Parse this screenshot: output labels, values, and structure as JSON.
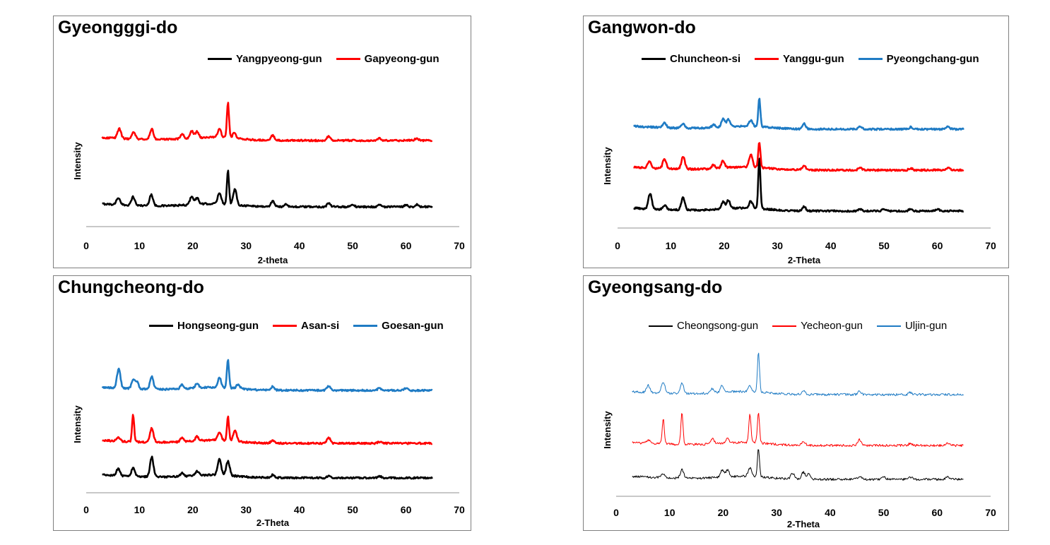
{
  "chart_data": [
    {
      "type": "line",
      "title": "Gyeongggi-do",
      "xlabel": "2-theta",
      "ylabel": "Intensity",
      "xlim": [
        0,
        70
      ],
      "xticks": [
        "0",
        "10",
        "20",
        "30",
        "40",
        "50",
        "60",
        "70"
      ],
      "line_style": "thick",
      "series": [
        {
          "name": "Yangpyeong-gun",
          "color": "#000000",
          "peaks": [
            [
              6.0,
              10
            ],
            [
              8.8,
              12
            ],
            [
              12.2,
              16
            ],
            [
              19.8,
              12
            ],
            [
              20.8,
              9
            ],
            [
              25.0,
              16
            ],
            [
              26.6,
              48
            ],
            [
              27.9,
              22
            ],
            [
              35.0,
              8
            ],
            [
              37.5,
              4
            ],
            [
              45.5,
              5
            ],
            [
              50.0,
              3
            ],
            [
              55.0,
              3
            ],
            [
              60.0,
              3
            ],
            [
              62.0,
              3
            ]
          ]
        },
        {
          "name": "Gapyeong-gun",
          "color": "#ff0000",
          "peaks": [
            [
              6.2,
              14
            ],
            [
              8.9,
              10
            ],
            [
              12.3,
              15
            ],
            [
              18.0,
              7
            ],
            [
              19.8,
              10
            ],
            [
              20.8,
              9
            ],
            [
              25.0,
              12
            ],
            [
              26.6,
              50
            ],
            [
              27.8,
              8
            ],
            [
              35.0,
              7
            ],
            [
              45.5,
              6
            ],
            [
              55.0,
              3
            ],
            [
              62.0,
              3
            ]
          ]
        }
      ]
    },
    {
      "type": "line",
      "title": "Gangwon-do",
      "xlabel": "2-Theta",
      "ylabel": "Intensity",
      "xlim": [
        0,
        70
      ],
      "xticks": [
        "0",
        "10",
        "20",
        "30",
        "40",
        "50",
        "60",
        "70"
      ],
      "line_style": "thick",
      "series": [
        {
          "name": "Chuncheon-si",
          "color": "#000000",
          "peaks": [
            [
              6.1,
              22
            ],
            [
              8.8,
              6
            ],
            [
              12.3,
              18
            ],
            [
              19.8,
              10
            ],
            [
              20.8,
              12
            ],
            [
              25.0,
              10
            ],
            [
              26.6,
              72
            ],
            [
              35.0,
              6
            ],
            [
              45.5,
              3
            ],
            [
              50.0,
              3
            ],
            [
              55.0,
              3
            ],
            [
              60.0,
              3
            ]
          ]
        },
        {
          "name": "Yanggu-gun",
          "color": "#ff0000",
          "peaks": [
            [
              6.0,
              10
            ],
            [
              8.8,
              14
            ],
            [
              12.3,
              18
            ],
            [
              18.0,
              5
            ],
            [
              19.8,
              10
            ],
            [
              25.0,
              18
            ],
            [
              26.6,
              36
            ],
            [
              35.0,
              6
            ],
            [
              45.5,
              4
            ],
            [
              55.0,
              3
            ],
            [
              62.0,
              3
            ]
          ]
        },
        {
          "name": "Pyeongchang-gun",
          "color": "#1f7bc4",
          "peaks": [
            [
              8.8,
              7
            ],
            [
              12.3,
              6
            ],
            [
              18.0,
              4
            ],
            [
              19.8,
              12
            ],
            [
              20.8,
              10
            ],
            [
              25.0,
              8
            ],
            [
              26.6,
              40
            ],
            [
              35.0,
              8
            ],
            [
              45.5,
              4
            ],
            [
              55.0,
              3
            ],
            [
              62.0,
              4
            ]
          ]
        }
      ]
    },
    {
      "type": "line",
      "title": "Chungcheong-do",
      "xlabel": "2-Theta",
      "ylabel": "Intensity",
      "xlim": [
        0,
        70
      ],
      "xticks": [
        "0",
        "10",
        "20",
        "30",
        "40",
        "50",
        "60",
        "70"
      ],
      "line_style": "thick",
      "series": [
        {
          "name": "Hongseong-gun",
          "color": "#000000",
          "peaks": [
            [
              6.0,
              10
            ],
            [
              8.8,
              12
            ],
            [
              12.3,
              28
            ],
            [
              18.0,
              5
            ],
            [
              20.8,
              6
            ],
            [
              25.0,
              22
            ],
            [
              26.6,
              20
            ],
            [
              35.0,
              4
            ],
            [
              45.5,
              3
            ],
            [
              55.0,
              3
            ]
          ]
        },
        {
          "name": "Asan-si",
          "color": "#ff0000",
          "peaks": [
            [
              6.0,
              6
            ],
            [
              8.8,
              38
            ],
            [
              12.3,
              20
            ],
            [
              18.0,
              6
            ],
            [
              20.8,
              6
            ],
            [
              25.0,
              12
            ],
            [
              26.6,
              34
            ],
            [
              27.9,
              16
            ],
            [
              35.0,
              4
            ],
            [
              45.5,
              8
            ],
            [
              55.0,
              2
            ]
          ]
        },
        {
          "name": "Goesan-gun",
          "color": "#1f7bc4",
          "peaks": [
            [
              6.1,
              28
            ],
            [
              8.8,
              12
            ],
            [
              9.5,
              10
            ],
            [
              12.3,
              18
            ],
            [
              18.0,
              6
            ],
            [
              20.8,
              6
            ],
            [
              25.0,
              14
            ],
            [
              26.6,
              40
            ],
            [
              28.5,
              6
            ],
            [
              35.0,
              5
            ],
            [
              45.5,
              6
            ],
            [
              55.0,
              3
            ],
            [
              60.0,
              3
            ]
          ]
        }
      ]
    },
    {
      "type": "line",
      "title": "Gyeongsang-do",
      "xlabel": "2-Theta",
      "ylabel": "Intensity",
      "xlim": [
        0,
        70
      ],
      "xticks": [
        "0",
        "10",
        "20",
        "30",
        "40",
        "50",
        "60",
        "70"
      ],
      "line_style": "thin",
      "series": [
        {
          "name": "Cheongsong-gun",
          "color": "#000000",
          "peaks": [
            [
              8.8,
              5
            ],
            [
              12.3,
              12
            ],
            [
              19.8,
              10
            ],
            [
              20.8,
              10
            ],
            [
              25.0,
              12
            ],
            [
              26.6,
              40
            ],
            [
              33.0,
              8
            ],
            [
              35.0,
              10
            ],
            [
              36.0,
              8
            ],
            [
              45.5,
              4
            ],
            [
              50.0,
              3
            ],
            [
              55.0,
              3
            ],
            [
              62.0,
              4
            ]
          ]
        },
        {
          "name": "Yecheon-gun",
          "color": "#ff0000",
          "peaks": [
            [
              6.0,
              5
            ],
            [
              8.8,
              36
            ],
            [
              12.3,
              44
            ],
            [
              18.0,
              8
            ],
            [
              20.8,
              6
            ],
            [
              25.0,
              40
            ],
            [
              26.6,
              44
            ],
            [
              35.0,
              6
            ],
            [
              45.5,
              8
            ],
            [
              55.0,
              3
            ],
            [
              62.0,
              3
            ]
          ]
        },
        {
          "name": "Uljin-gun",
          "color": "#1f7bc4",
          "peaks": [
            [
              6.0,
              10
            ],
            [
              8.8,
              16
            ],
            [
              12.3,
              14
            ],
            [
              18.0,
              6
            ],
            [
              19.8,
              10
            ],
            [
              25.0,
              8
            ],
            [
              26.6,
              56
            ],
            [
              35.0,
              6
            ],
            [
              45.5,
              5
            ],
            [
              55.0,
              3
            ]
          ]
        }
      ]
    }
  ]
}
